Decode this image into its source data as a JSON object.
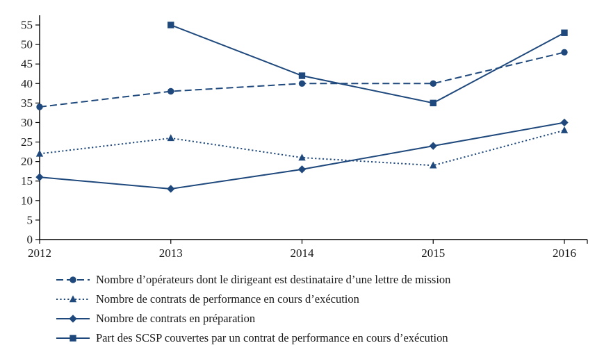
{
  "chart_data": {
    "type": "line",
    "title": "",
    "xlabel": "",
    "ylabel": "",
    "categories": [
      "2012",
      "2013",
      "2014",
      "2015",
      "2016"
    ],
    "ylim": [
      0,
      55
    ],
    "y_ticks": [
      0,
      5,
      10,
      15,
      20,
      25,
      30,
      35,
      40,
      45,
      50,
      55
    ],
    "grid": false,
    "legend_position": "bottom",
    "accent_color": "#1F497D",
    "series": [
      {
        "name": "Nombre d’opérateurs dont le dirigeant est destinataire d’une lettre de mission",
        "values": [
          34,
          38,
          40,
          40,
          48
        ],
        "marker": "circle",
        "line": "dashed"
      },
      {
        "name": "Nombre de contrats de performance en cours d’exécution",
        "values": [
          22,
          26,
          21,
          19,
          28
        ],
        "marker": "triangle",
        "line": "dotted"
      },
      {
        "name": "Nombre de contrats en préparation",
        "values": [
          16,
          13,
          18,
          24,
          30
        ],
        "marker": "diamond",
        "line": "solid"
      },
      {
        "name": "Part des SCSP couvertes par un contrat de performance en cours d’exécution",
        "values": [
          null,
          55,
          42,
          35,
          53
        ],
        "marker": "square",
        "line": "solid"
      }
    ]
  }
}
